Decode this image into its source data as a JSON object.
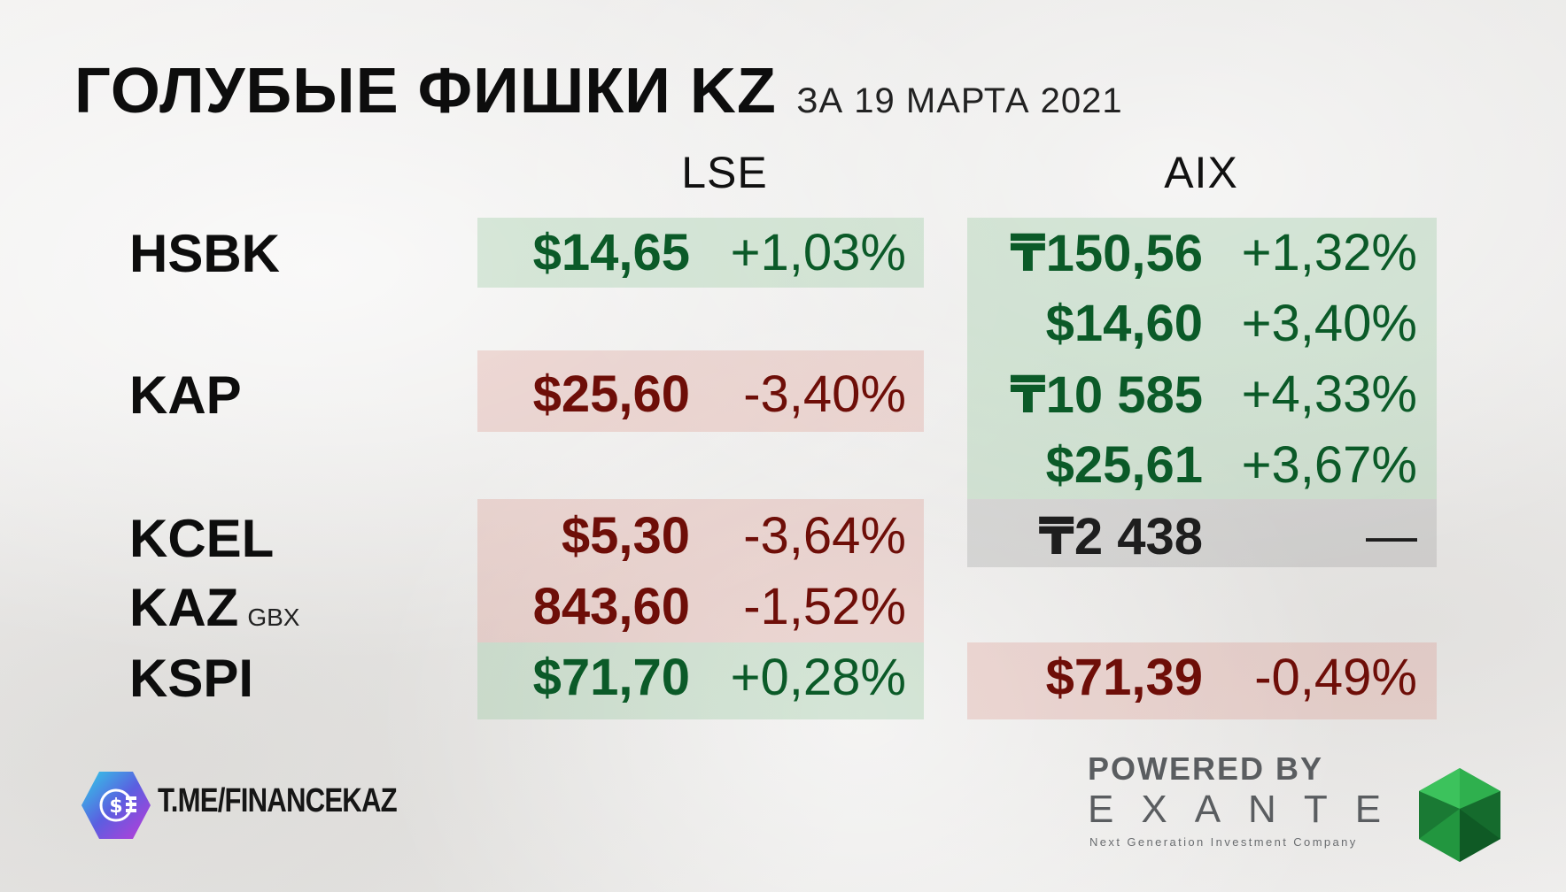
{
  "title": {
    "main": "ГОЛУБЫЕ ФИШКИ KZ",
    "date": "ЗА 19 МАРТА 2021"
  },
  "columns": {
    "lse": "LSE",
    "aix": "AIX"
  },
  "tickers": {
    "hsbk": "HSBK",
    "kap": "KAP",
    "kcel": "KCEL",
    "kaz": "KAZ",
    "kaz_unit": "GBX",
    "kspi": "KSPI"
  },
  "lse": {
    "hsbk": {
      "price": "$14,65",
      "change": "+1,03%"
    },
    "kap": {
      "price": "$25,60",
      "change": "-3,40%"
    },
    "kcel": {
      "price": "$5,30",
      "change": "-3,64%"
    },
    "kaz": {
      "price": "843,60",
      "change": "-1,52%"
    },
    "kspi": {
      "price": "$71,70",
      "change": "+0,28%"
    }
  },
  "aix": {
    "hsbk_kzt": {
      "price": "₸150,56",
      "change": "+1,32%"
    },
    "hsbk_usd": {
      "price": "$14,60",
      "change": "+3,40%"
    },
    "kap_kzt": {
      "price": "₸10 585",
      "change": "+4,33%"
    },
    "kap_usd": {
      "price": "$25,61",
      "change": "+3,67%"
    },
    "kcel_kzt": {
      "price": "₸2 438",
      "change": "—"
    },
    "kspi_usd": {
      "price": "$71,39",
      "change": "-0,49%"
    }
  },
  "colors": {
    "up": "#0b5a28",
    "down": "#6e0e08",
    "neutral": "#1e1e1e"
  },
  "footer": {
    "telegram": "T.ME/FINANCEKAZ",
    "powered_by": "POWERED BY",
    "brand": "EXANTE",
    "brand_tagline": "Next Generation Investment Company"
  }
}
